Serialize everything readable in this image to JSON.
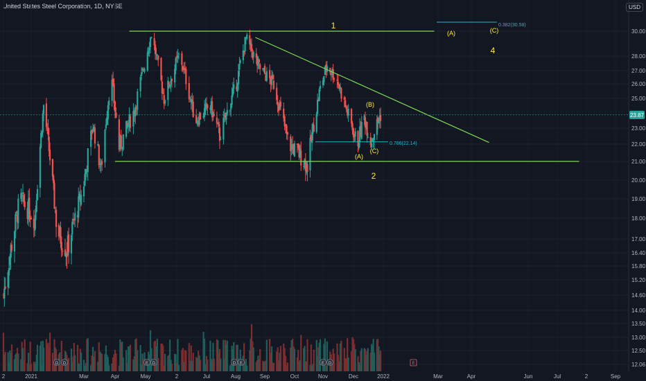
{
  "header": {
    "title": "United States Steel Corporation, 1D, NYSE",
    "currency": "USD"
  },
  "price_axis": {
    "ticks": [
      "30.00",
      "28.00",
      "27.00",
      "26.00",
      "25.00",
      "23.00",
      "22.00",
      "21.00",
      "20.00",
      "19.00",
      "18.00",
      "17.00",
      "16.40",
      "15.80",
      "15.20",
      "14.60",
      "14.00",
      "13.50",
      "13.00",
      "12.50",
      "12.06"
    ],
    "current_price": "23.87"
  },
  "time_axis": {
    "ticks": [
      "2",
      "2021",
      "Mar",
      "Apr",
      "May",
      "2",
      "Jul",
      "Aug",
      "Sep",
      "Oct",
      "Nov",
      "Dec",
      "2022",
      "Mar",
      "Apr",
      "Jun",
      "Jul",
      "2",
      "Sep"
    ]
  },
  "annotations": {
    "wave_1": "1",
    "wave_2": "2",
    "wave_4": "4",
    "wave_A_top": "(A)",
    "wave_C_top": "(C)",
    "wave_A_low": "(A)",
    "wave_B": "(B)",
    "wave_C_low": "(C)",
    "fib_382": "0.382(30.58)",
    "fib_786": "0.786(22.14)",
    "event_E": "E",
    "event_D": "D"
  },
  "colors": {
    "background": "#131722",
    "up": "#26a69a",
    "down": "#ef5350",
    "vol_up": "#1e5f5b",
    "vol_down": "#7a2e30",
    "trendline": "#7ed957",
    "fib": "#2ab3c9",
    "wave_label": "#ffeb3b"
  },
  "chart_data": {
    "type": "candlestick",
    "symbol": "United States Steel Corporation",
    "interval": "1D",
    "exchange": "NYSE",
    "current_price": 23.87,
    "anchors": [
      {
        "t": "2020-12-02",
        "price": 14.6
      },
      {
        "t": "2020-12-20",
        "price": 19.0
      },
      {
        "t": "2021-01-05",
        "price": 18.0
      },
      {
        "t": "2021-01-15",
        "price": 24.5
      },
      {
        "t": "2021-01-30",
        "price": 17.4
      },
      {
        "t": "2021-02-10",
        "price": 16.5
      },
      {
        "t": "2021-02-28",
        "price": 19.5
      },
      {
        "t": "2021-03-10",
        "price": 23.2
      },
      {
        "t": "2021-03-18",
        "price": 20.5
      },
      {
        "t": "2021-03-28",
        "price": 26.6
      },
      {
        "t": "2021-04-05",
        "price": 21.8
      },
      {
        "t": "2021-04-20",
        "price": 24.2
      },
      {
        "t": "2021-05-07",
        "price": 29.8
      },
      {
        "t": "2021-05-20",
        "price": 25.0
      },
      {
        "t": "2021-06-05",
        "price": 28.2
      },
      {
        "t": "2021-06-20",
        "price": 23.5
      },
      {
        "t": "2021-07-05",
        "price": 24.5
      },
      {
        "t": "2021-07-15",
        "price": 22.5
      },
      {
        "t": "2021-08-01",
        "price": 25.8
      },
      {
        "t": "2021-08-12",
        "price": 29.4
      },
      {
        "t": "2021-08-25",
        "price": 27.3
      },
      {
        "t": "2021-09-10",
        "price": 26.0
      },
      {
        "t": "2021-09-25",
        "price": 22.0
      },
      {
        "t": "2021-10-05",
        "price": 21.5
      },
      {
        "t": "2021-10-15",
        "price": 20.8
      },
      {
        "t": "2021-10-28",
        "price": 25.4
      },
      {
        "t": "2021-11-05",
        "price": 27.4
      },
      {
        "t": "2021-11-15",
        "price": 26.3
      },
      {
        "t": "2021-11-25",
        "price": 24.0
      },
      {
        "t": "2021-12-05",
        "price": 22.0
      },
      {
        "t": "2021-12-13",
        "price": 23.7
      },
      {
        "t": "2021-12-20",
        "price": 22.2
      },
      {
        "t": "2021-12-31",
        "price": 23.87
      }
    ],
    "lines": [
      {
        "name": "resistance",
        "from": {
          "t": "2021-04-15",
          "price": 30.0
        },
        "to": {
          "t": "2022-02-25",
          "price": 30.0
        }
      },
      {
        "name": "support",
        "from": {
          "t": "2021-04-01",
          "price": 21.0
        },
        "to": {
          "t": "2022-07-25",
          "price": 21.0
        }
      },
      {
        "name": "descending-trendline",
        "from": {
          "t": "2021-08-22",
          "price": 29.5
        },
        "to": {
          "t": "2022-04-20",
          "price": 22.1
        }
      }
    ],
    "fib_levels": [
      {
        "label": "0.382",
        "value": 30.58
      },
      {
        "label": "0.786",
        "value": 22.14
      }
    ]
  }
}
